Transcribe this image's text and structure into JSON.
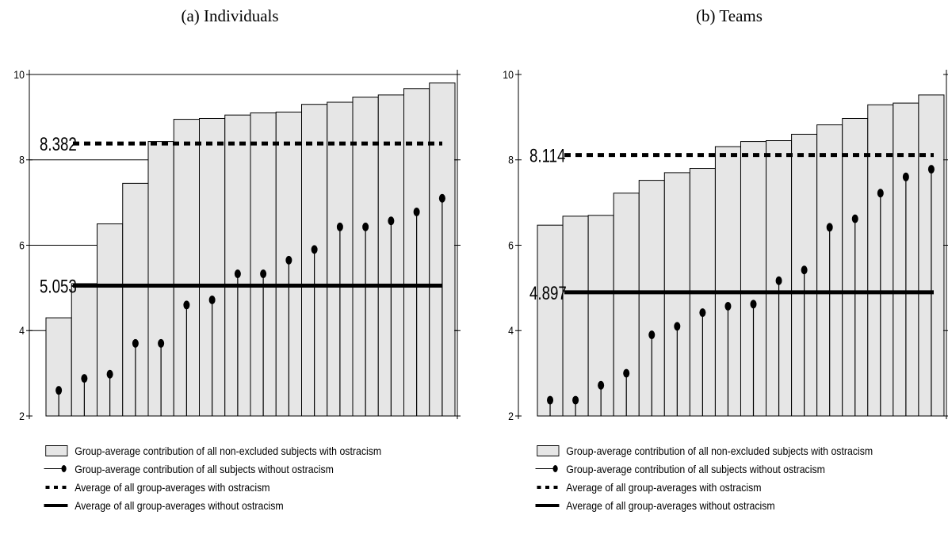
{
  "chart_data": [
    {
      "type": "bar",
      "title": "(a) Individuals",
      "ylim": [
        2,
        10
      ],
      "yticks": [
        "2",
        "4",
        "6",
        "8",
        "10"
      ],
      "grid": true,
      "series": [
        {
          "name": "Group-average contribution of all non-excluded subjects with ostracism",
          "values": [
            4.3,
            5.1,
            6.5,
            7.45,
            8.43,
            8.95,
            8.97,
            9.05,
            9.1,
            9.12,
            9.3,
            9.35,
            9.47,
            9.52,
            9.67,
            9.8
          ]
        },
        {
          "name": "Group-average contribution of all subjects without ostracism",
          "values": [
            2.6,
            2.88,
            2.98,
            3.7,
            3.7,
            4.6,
            4.72,
            5.33,
            5.33,
            5.65,
            5.9,
            6.43,
            6.43,
            6.57,
            6.78,
            7.1
          ]
        }
      ],
      "avg_with": {
        "value": 8.382,
        "label": "8.382",
        "name": "Average of all group-averages with ostracism"
      },
      "avg_without": {
        "value": 5.053,
        "label": "5.053",
        "name": "Average of all group-averages without ostracism"
      }
    },
    {
      "type": "bar",
      "title": "(b) Teams",
      "ylim": [
        2,
        10
      ],
      "yticks": [
        "2",
        "4",
        "6",
        "8",
        "10"
      ],
      "grid": false,
      "series": [
        {
          "name": "Group-average contribution of all non-excluded subjects with ostracism",
          "values": [
            6.47,
            6.68,
            6.7,
            7.22,
            7.52,
            7.7,
            7.8,
            8.31,
            8.43,
            8.45,
            8.6,
            8.82,
            8.97,
            9.29,
            9.33,
            9.52
          ]
        },
        {
          "name": "Group-average contribution of all subjects without ostracism",
          "values": [
            2.37,
            2.37,
            2.72,
            3.0,
            3.9,
            4.1,
            4.42,
            4.57,
            4.62,
            5.17,
            5.42,
            6.42,
            6.62,
            7.22,
            7.6,
            7.78
          ]
        }
      ],
      "avg_with": {
        "value": 8.114,
        "label": "8.114",
        "name": "Average of all group-averages with ostracism"
      },
      "avg_without": {
        "value": 4.897,
        "label": "4.897",
        "name": "Average of all group-averages without ostracism"
      }
    }
  ],
  "legend": [
    {
      "icon": "bar-swatch-icon",
      "label": "Group-average contribution of all non-excluded subjects with ostracism"
    },
    {
      "icon": "lollipop-icon",
      "label": "Group-average contribution of all subjects without ostracism"
    },
    {
      "icon": "dashed-line-icon",
      "label": "Average of all group-averages with ostracism"
    },
    {
      "icon": "solid-line-icon",
      "label": "Average of all group-averages without ostracism"
    }
  ]
}
